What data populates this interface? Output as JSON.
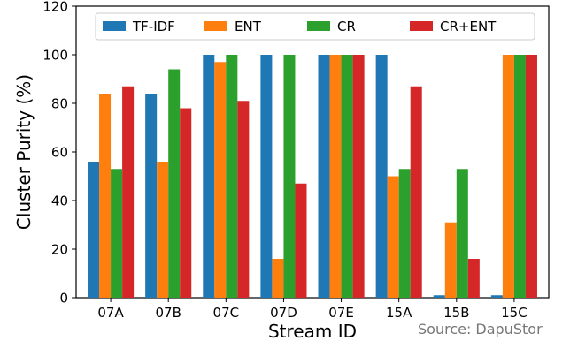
{
  "source_note": "Source: DapuStor",
  "chart_data": {
    "type": "bar",
    "title": "",
    "xlabel": "Stream ID",
    "ylabel": "Cluster Purity (%)",
    "ylim": [
      0,
      120
    ],
    "yticks": [
      0,
      20,
      40,
      60,
      80,
      100,
      120
    ],
    "grid": false,
    "legend_placement": "top",
    "categories": [
      "07A",
      "07B",
      "07C",
      "07D",
      "07E",
      "15A",
      "15B",
      "15C"
    ],
    "series": [
      {
        "name": "TF-IDF",
        "color": "#1f77b4",
        "values": [
          56,
          84,
          100,
          100,
          100,
          100,
          1,
          1
        ]
      },
      {
        "name": "ENT",
        "color": "#ff7f0e",
        "values": [
          84,
          56,
          97,
          16,
          100,
          50,
          31,
          100
        ]
      },
      {
        "name": "CR",
        "color": "#2ca02c",
        "values": [
          53,
          94,
          100,
          100,
          100,
          53,
          53,
          100
        ]
      },
      {
        "name": "CR+ENT",
        "color": "#d62728",
        "values": [
          87,
          78,
          81,
          47,
          100,
          87,
          16,
          100
        ]
      }
    ]
  }
}
